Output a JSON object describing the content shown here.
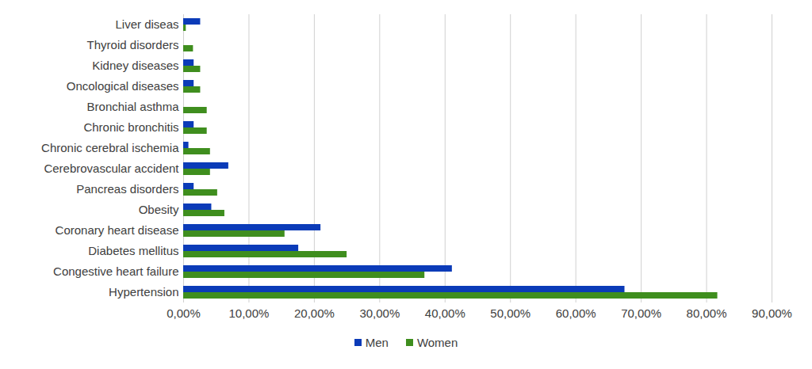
{
  "chart_data": {
    "type": "bar",
    "orientation": "horizontal",
    "grid": true,
    "legend": "bottom",
    "categories": [
      "Liver diseas",
      "Thyroid disorders",
      "Kidney diseases",
      "Oncological diseases",
      "Bronchial asthma",
      "Chronic bronchitis",
      "Chronic cerebral ischemia",
      "Cerebrovascular accident",
      "Pancreas disorders",
      "Obesity",
      "Coronary heart disease",
      "Diabetes mellitus",
      "Congestive heart failure",
      "Hypertension"
    ],
    "series": [
      {
        "name": "Men",
        "color": "#0b3bb8",
        "values": [
          2.6,
          0,
          1.6,
          1.6,
          0,
          1.6,
          0.8,
          6.9,
          1.6,
          4.3,
          21.0,
          17.6,
          41.1,
          67.5
        ]
      },
      {
        "name": "Women",
        "color": "#3f8e1e",
        "values": [
          0.4,
          1.5,
          2.6,
          2.6,
          3.6,
          3.6,
          4.1,
          4.1,
          5.2,
          6.3,
          15.5,
          25.0,
          36.9,
          81.7
        ]
      }
    ],
    "xlim": [
      0,
      90
    ],
    "xticks": [
      {
        "value": 0,
        "label": "0,00%"
      },
      {
        "value": 10,
        "label": "10,00%"
      },
      {
        "value": 20,
        "label": "20,00%"
      },
      {
        "value": 30,
        "label": "30,00%"
      },
      {
        "value": 40,
        "label": "40,00%"
      },
      {
        "value": 50,
        "label": "50,00%"
      },
      {
        "value": 60,
        "label": "60,00%"
      },
      {
        "value": 70,
        "label": "70,00%"
      },
      {
        "value": 80,
        "label": "80,00%"
      },
      {
        "value": 90,
        "label": "90,00%"
      }
    ]
  }
}
